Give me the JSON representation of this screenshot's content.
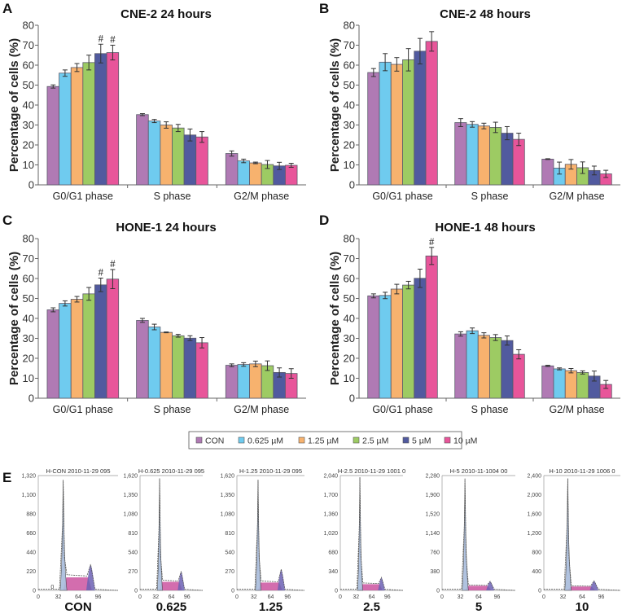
{
  "figure": {
    "legend": {
      "items": [
        {
          "label": "CON",
          "color": "#B07AB4"
        },
        {
          "label": "0.625 µM",
          "color": "#6FCBEF"
        },
        {
          "label": "1.25 µM",
          "color": "#F7B26E"
        },
        {
          "label": "2.5 µM",
          "color": "#9DCB63"
        },
        {
          "label": "5 µM",
          "color": "#515A9F"
        },
        {
          "label": "10 µM",
          "color": "#E8559A"
        }
      ]
    }
  },
  "chart_data": [
    {
      "panel": "A",
      "type": "bar",
      "title": "CNE-2 24 hours",
      "xlabel": "",
      "ylabel": "Percentage of cells (%)",
      "ylim": [
        0,
        80
      ],
      "yticks": [
        0,
        10,
        20,
        30,
        40,
        50,
        60,
        70,
        80
      ],
      "grid": false,
      "categories": [
        "G0/G1 phase",
        "S phase",
        "G2/M phase"
      ],
      "series": [
        {
          "name": "CON",
          "values": [
            49.3,
            35.2,
            15.7
          ],
          "errors": [
            0.8,
            0.5,
            1.3
          ]
        },
        {
          "name": "0.625 µM",
          "values": [
            56.0,
            32.0,
            12.0
          ],
          "errors": [
            1.6,
            0.8,
            0.9
          ]
        },
        {
          "name": "1.25 µM",
          "values": [
            58.8,
            30.0,
            11.0
          ],
          "errors": [
            2.0,
            1.6,
            0.4
          ]
        },
        {
          "name": "2.5 µM",
          "values": [
            61.3,
            28.5,
            10.2
          ],
          "errors": [
            3.7,
            1.8,
            2.0
          ]
        },
        {
          "name": "5 µM",
          "values": [
            65.8,
            25.0,
            9.5
          ],
          "errors": [
            4.7,
            3.0,
            1.8
          ]
        },
        {
          "name": "10 µM",
          "values": [
            66.3,
            24.0,
            9.8
          ],
          "errors": [
            3.7,
            2.7,
            1.0
          ]
        }
      ],
      "annotations": [
        {
          "category": "G0/G1 phase",
          "series": "5 µM",
          "text": "#"
        },
        {
          "category": "G0/G1 phase",
          "series": "10 µM",
          "text": "#"
        }
      ]
    },
    {
      "panel": "B",
      "type": "bar",
      "title": "CNE-2 48 hours",
      "xlabel": "",
      "ylabel": "Percentage of cells (%)",
      "ylim": [
        0,
        80
      ],
      "yticks": [
        0,
        10,
        20,
        30,
        40,
        50,
        60,
        70,
        80
      ],
      "grid": false,
      "categories": [
        "G0/G1 phase",
        "S phase",
        "G2/M phase"
      ],
      "series": [
        {
          "name": "CON",
          "values": [
            56.3,
            31.2,
            12.9
          ],
          "errors": [
            2.0,
            2.0,
            0.2
          ]
        },
        {
          "name": "0.625 µM",
          "values": [
            61.5,
            30.3,
            8.4
          ],
          "errors": [
            4.3,
            1.4,
            3.0
          ]
        },
        {
          "name": "1.25 µM",
          "values": [
            60.4,
            29.5,
            10.3
          ],
          "errors": [
            3.4,
            1.4,
            2.4
          ]
        },
        {
          "name": "2.5 µM",
          "values": [
            62.7,
            28.8,
            8.6
          ],
          "errors": [
            5.6,
            2.6,
            2.9
          ]
        },
        {
          "name": "5 µM",
          "values": [
            67.0,
            25.9,
            7.2
          ],
          "errors": [
            6.4,
            3.3,
            2.2
          ]
        },
        {
          "name": "10 µM",
          "values": [
            71.9,
            22.8,
            5.5
          ],
          "errors": [
            4.9,
            3.1,
            1.8
          ]
        }
      ],
      "annotations": []
    },
    {
      "panel": "C",
      "type": "bar",
      "title": "HONE-1 24 hours",
      "xlabel": "",
      "ylabel": "Percentage of cells (%)",
      "ylim": [
        0,
        80
      ],
      "yticks": [
        0,
        10,
        20,
        30,
        40,
        50,
        60,
        70,
        80
      ],
      "grid": false,
      "categories": [
        "G0/G1 phase",
        "S phase",
        "G2/M phase"
      ],
      "series": [
        {
          "name": "CON",
          "values": [
            44.3,
            39.0,
            16.5
          ],
          "errors": [
            1.0,
            1.0,
            0.7
          ]
        },
        {
          "name": "0.625 µM",
          "values": [
            47.5,
            35.7,
            16.9
          ],
          "errors": [
            1.3,
            1.4,
            0.9
          ]
        },
        {
          "name": "1.25 µM",
          "values": [
            49.6,
            33.0,
            17.2
          ],
          "errors": [
            1.4,
            0.2,
            1.4
          ]
        },
        {
          "name": "2.5 µM",
          "values": [
            52.3,
            31.3,
            16.3
          ],
          "errors": [
            3.2,
            0.7,
            2.4
          ]
        },
        {
          "name": "5 µM",
          "values": [
            56.8,
            30.1,
            12.9
          ],
          "errors": [
            3.4,
            1.2,
            2.3
          ]
        },
        {
          "name": "10 µM",
          "values": [
            59.7,
            27.8,
            12.4
          ],
          "errors": [
            4.8,
            2.6,
            2.4
          ]
        }
      ],
      "annotations": [
        {
          "category": "G0/G1 phase",
          "series": "5 µM",
          "text": "#"
        },
        {
          "category": "G0/G1 phase",
          "series": "10 µM",
          "text": "#"
        }
      ]
    },
    {
      "panel": "D",
      "type": "bar",
      "title": "HONE-1 48 hours",
      "xlabel": "",
      "ylabel": "Percentage of cells (%)",
      "ylim": [
        0,
        80
      ],
      "yticks": [
        0,
        10,
        20,
        30,
        40,
        50,
        60,
        70,
        80
      ],
      "grid": false,
      "categories": [
        "G0/G1 phase",
        "S phase",
        "G2/M phase"
      ],
      "series": [
        {
          "name": "CON",
          "values": [
            51.3,
            32.2,
            16.2
          ],
          "errors": [
            1.0,
            1.1,
            0.3
          ]
        },
        {
          "name": "0.625 µM",
          "values": [
            51.5,
            33.8,
            14.7
          ],
          "errors": [
            1.6,
            1.4,
            0.5
          ]
        },
        {
          "name": "1.25 µM",
          "values": [
            54.7,
            31.5,
            13.8
          ],
          "errors": [
            2.4,
            1.3,
            1.1
          ]
        },
        {
          "name": "2.5 µM",
          "values": [
            56.7,
            30.4,
            12.9
          ],
          "errors": [
            1.9,
            1.5,
            0.8
          ]
        },
        {
          "name": "5 µM",
          "values": [
            60.1,
            28.9,
            11.1
          ],
          "errors": [
            4.6,
            2.3,
            2.5
          ]
        },
        {
          "name": "10 µM",
          "values": [
            71.3,
            22.0,
            6.9
          ],
          "errors": [
            4.3,
            2.3,
            2.0
          ]
        }
      ],
      "annotations": [
        {
          "category": "G0/G1 phase",
          "series": "10 µM",
          "text": "#"
        }
      ]
    }
  ],
  "histograms": {
    "panel": "E",
    "xticks": [
      0,
      32,
      64,
      96
    ],
    "xmax": 128,
    "colors": {
      "g1": "#A8BCDC",
      "s": "#C8489A",
      "g2": "#6C62B4",
      "outline": "#555555"
    },
    "items": [
      {
        "label": "CON",
        "title": "H-CON 2010-11-29 095",
        "yticks": [
          "0",
          "220",
          "440",
          "660",
          "880",
          "1,100",
          "1,320"
        ],
        "ymax": 1320,
        "g1_peak": 1270,
        "s_level": 150,
        "g2_peak": 300,
        "note": "0"
      },
      {
        "label": "0.625",
        "title": "H-0.625 2010-11-29 095",
        "yticks": [
          "0",
          "270",
          "540",
          "810",
          "1,080",
          "1,350",
          "1,620"
        ],
        "ymax": 1620,
        "g1_peak": 1580,
        "s_level": 120,
        "g2_peak": 270
      },
      {
        "label": "1.25",
        "title": "H-1.25 2010-11-29 095",
        "yticks": [
          "0",
          "270",
          "540",
          "810",
          "1,080",
          "1,350",
          "1,620"
        ],
        "ymax": 1620,
        "g1_peak": 1560,
        "s_level": 110,
        "g2_peak": 300
      },
      {
        "label": "2.5",
        "title": "H-2.5 2010-11-29 1001 0",
        "yticks": [
          "0",
          "340",
          "680",
          "1,020",
          "1,360",
          "1,700",
          "2,040"
        ],
        "ymax": 2040,
        "g1_peak": 2010,
        "s_level": 110,
        "g2_peak": 230
      },
      {
        "label": "5",
        "title": "H-5 2010-11-1004 00",
        "yticks": [
          "0",
          "380",
          "760",
          "1,140",
          "1,520",
          "1,900",
          "2,280"
        ],
        "ymax": 2280,
        "g1_peak": 2220,
        "s_level": 90,
        "g2_peak": 180
      },
      {
        "label": "10",
        "title": "H-10 2010-11-29 1006 0",
        "yticks": [
          "0",
          "400",
          "800",
          "1,200",
          "1,600",
          "2,000",
          "2,400"
        ],
        "ymax": 2400,
        "g1_peak": 2340,
        "s_level": 80,
        "g2_peak": 200
      }
    ]
  }
}
